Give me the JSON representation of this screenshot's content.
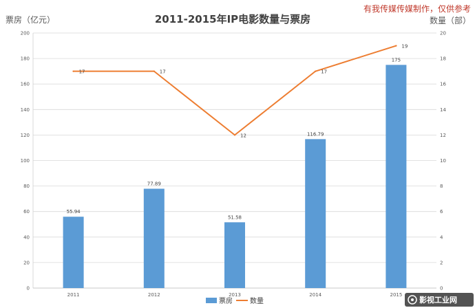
{
  "watermark": "有我传媒传媒制作，仅供参考",
  "logo": "影视工业网",
  "colors": {
    "bar": "#5b9bd5",
    "line": "#ed7d31",
    "grid": "#d9d9d9"
  },
  "chart_data": {
    "type": "bar",
    "title": "2011-2015年IP电影数量与票房",
    "categories": [
      "2011",
      "2012",
      "2013",
      "2014",
      "2015"
    ],
    "series": [
      {
        "name": "票房",
        "type": "bar",
        "axis": "left",
        "values": [
          55.94,
          77.89,
          51.58,
          116.79,
          175
        ]
      },
      {
        "name": "数量",
        "type": "line",
        "axis": "right",
        "values": [
          17,
          17,
          12,
          17,
          19
        ]
      }
    ],
    "ylabel": "票房（亿元）",
    "y2label": "数量（部）",
    "ylim": [
      0,
      200
    ],
    "y2lim": [
      0,
      20
    ],
    "yticks": [
      0,
      20,
      40,
      60,
      80,
      100,
      120,
      140,
      160,
      180,
      200
    ],
    "y2ticks": [
      0,
      2,
      4,
      6,
      8,
      10,
      12,
      14,
      16,
      18,
      20
    ],
    "grid": true,
    "legend": "bottom"
  }
}
